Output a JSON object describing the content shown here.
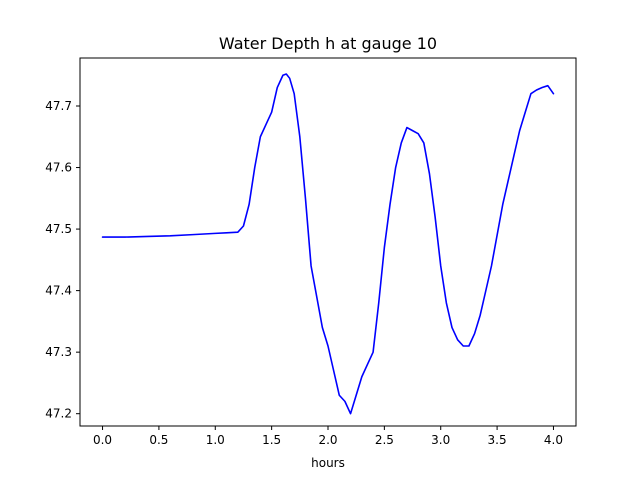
{
  "chart_data": {
    "type": "line",
    "title": "Water Depth h at gauge 10",
    "xlabel": "hours",
    "ylabel": "",
    "xlim": [
      -0.2,
      4.2
    ],
    "ylim": [
      47.18,
      47.778
    ],
    "xticks": [
      0.0,
      0.5,
      1.0,
      1.5,
      2.0,
      2.5,
      3.0,
      3.5,
      4.0
    ],
    "xtick_labels": [
      "0.0",
      "0.5",
      "1.0",
      "1.5",
      "2.0",
      "2.5",
      "3.0",
      "3.5",
      "4.0"
    ],
    "yticks": [
      47.2,
      47.3,
      47.4,
      47.5,
      47.6,
      47.7
    ],
    "ytick_labels": [
      "47.2",
      "47.3",
      "47.4",
      "47.5",
      "47.6",
      "47.7"
    ],
    "grid": false,
    "series": [
      {
        "color": "#0000ff",
        "x": [
          0.0,
          0.2,
          0.4,
          0.6,
          0.8,
          1.0,
          1.1,
          1.2,
          1.25,
          1.3,
          1.35,
          1.4,
          1.45,
          1.5,
          1.55,
          1.6,
          1.63,
          1.66,
          1.7,
          1.75,
          1.8,
          1.85,
          1.9,
          1.95,
          2.0,
          2.05,
          2.1,
          2.15,
          2.2,
          2.25,
          2.3,
          2.35,
          2.4,
          2.45,
          2.5,
          2.55,
          2.6,
          2.65,
          2.7,
          2.75,
          2.8,
          2.85,
          2.9,
          2.95,
          3.0,
          3.05,
          3.1,
          3.15,
          3.2,
          3.25,
          3.3,
          3.35,
          3.4,
          3.45,
          3.5,
          3.55,
          3.6,
          3.65,
          3.7,
          3.75,
          3.8,
          3.85,
          3.9,
          3.95,
          4.0
        ],
        "y": [
          47.487,
          47.487,
          47.488,
          47.489,
          47.491,
          47.493,
          47.494,
          47.495,
          47.505,
          47.54,
          47.6,
          47.65,
          47.67,
          47.69,
          47.73,
          47.75,
          47.752,
          47.745,
          47.72,
          47.65,
          47.55,
          47.44,
          47.39,
          47.34,
          47.31,
          47.27,
          47.23,
          47.22,
          47.2,
          47.23,
          47.26,
          47.28,
          47.3,
          47.38,
          47.47,
          47.54,
          47.6,
          47.64,
          47.665,
          47.66,
          47.655,
          47.64,
          47.59,
          47.52,
          47.44,
          47.38,
          47.34,
          47.32,
          47.31,
          47.31,
          47.33,
          47.36,
          47.4,
          47.44,
          47.49,
          47.54,
          47.58,
          47.62,
          47.66,
          47.69,
          47.72,
          47.726,
          47.73,
          47.733,
          47.72
        ]
      }
    ]
  }
}
